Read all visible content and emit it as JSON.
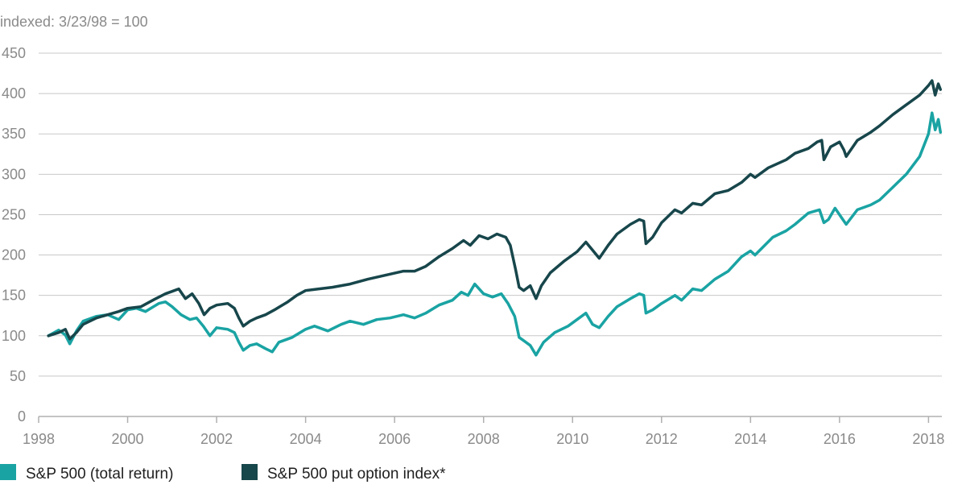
{
  "chart_data": {
    "type": "line",
    "title": "",
    "subtitle": "indexed: 3/23/98 = 100",
    "xlabel": "",
    "ylabel": "",
    "xlim": [
      1998,
      2018.3
    ],
    "ylim": [
      0,
      450
    ],
    "x_ticks": [
      "1998",
      "2000",
      "2002",
      "2004",
      "2006",
      "2008",
      "2010",
      "2012",
      "2014",
      "2016",
      "2018"
    ],
    "y_ticks": [
      "0",
      "50",
      "100",
      "150",
      "200",
      "250",
      "300",
      "350",
      "400",
      "450"
    ],
    "grid": true,
    "legend_position": "bottom",
    "series": [
      {
        "name": "S&P 500 (total return)",
        "color": "#1aa3a3",
        "points": [
          [
            1998.22,
            100
          ],
          [
            1998.45,
            107
          ],
          [
            1998.6,
            101
          ],
          [
            1998.7,
            90
          ],
          [
            1998.85,
            106
          ],
          [
            1999.0,
            118
          ],
          [
            1999.3,
            124
          ],
          [
            1999.55,
            126
          ],
          [
            1999.8,
            120
          ],
          [
            2000.0,
            132
          ],
          [
            2000.2,
            134
          ],
          [
            2000.4,
            130
          ],
          [
            2000.7,
            140
          ],
          [
            2000.85,
            142
          ],
          [
            2001.0,
            136
          ],
          [
            2001.2,
            126
          ],
          [
            2001.4,
            120
          ],
          [
            2001.55,
            122
          ],
          [
            2001.7,
            112
          ],
          [
            2001.85,
            100
          ],
          [
            2002.0,
            110
          ],
          [
            2002.25,
            108
          ],
          [
            2002.4,
            104
          ],
          [
            2002.5,
            92
          ],
          [
            2002.6,
            82
          ],
          [
            2002.75,
            88
          ],
          [
            2002.9,
            90
          ],
          [
            2003.1,
            84
          ],
          [
            2003.25,
            80
          ],
          [
            2003.4,
            92
          ],
          [
            2003.7,
            98
          ],
          [
            2004.0,
            108
          ],
          [
            2004.2,
            112
          ],
          [
            2004.5,
            106
          ],
          [
            2004.8,
            114
          ],
          [
            2005.0,
            118
          ],
          [
            2005.3,
            114
          ],
          [
            2005.6,
            120
          ],
          [
            2005.9,
            122
          ],
          [
            2006.2,
            126
          ],
          [
            2006.45,
            122
          ],
          [
            2006.7,
            128
          ],
          [
            2007.0,
            138
          ],
          [
            2007.3,
            144
          ],
          [
            2007.5,
            154
          ],
          [
            2007.65,
            150
          ],
          [
            2007.8,
            164
          ],
          [
            2008.0,
            152
          ],
          [
            2008.2,
            148
          ],
          [
            2008.4,
            152
          ],
          [
            2008.55,
            140
          ],
          [
            2008.7,
            124
          ],
          [
            2008.8,
            98
          ],
          [
            2008.9,
            94
          ],
          [
            2009.05,
            88
          ],
          [
            2009.18,
            76
          ],
          [
            2009.35,
            92
          ],
          [
            2009.6,
            104
          ],
          [
            2009.9,
            112
          ],
          [
            2010.1,
            120
          ],
          [
            2010.3,
            128
          ],
          [
            2010.45,
            114
          ],
          [
            2010.6,
            110
          ],
          [
            2010.8,
            124
          ],
          [
            2011.0,
            136
          ],
          [
            2011.3,
            146
          ],
          [
            2011.5,
            152
          ],
          [
            2011.6,
            150
          ],
          [
            2011.65,
            128
          ],
          [
            2011.8,
            132
          ],
          [
            2012.0,
            140
          ],
          [
            2012.3,
            150
          ],
          [
            2012.45,
            144
          ],
          [
            2012.7,
            158
          ],
          [
            2012.9,
            156
          ],
          [
            2013.2,
            170
          ],
          [
            2013.5,
            180
          ],
          [
            2013.8,
            198
          ],
          [
            2014.0,
            205
          ],
          [
            2014.1,
            200
          ],
          [
            2014.5,
            222
          ],
          [
            2014.8,
            230
          ],
          [
            2015.0,
            238
          ],
          [
            2015.3,
            252
          ],
          [
            2015.55,
            256
          ],
          [
            2015.65,
            240
          ],
          [
            2015.75,
            244
          ],
          [
            2015.9,
            258
          ],
          [
            2016.05,
            246
          ],
          [
            2016.15,
            238
          ],
          [
            2016.4,
            256
          ],
          [
            2016.7,
            262
          ],
          [
            2016.9,
            268
          ],
          [
            2017.2,
            284
          ],
          [
            2017.5,
            300
          ],
          [
            2017.8,
            322
          ],
          [
            2018.0,
            350
          ],
          [
            2018.08,
            376
          ],
          [
            2018.15,
            355
          ],
          [
            2018.22,
            368
          ],
          [
            2018.27,
            352
          ]
        ]
      },
      {
        "name": "S&P 500 put option index*",
        "color": "#17464b",
        "points": [
          [
            1998.22,
            100
          ],
          [
            1998.45,
            104
          ],
          [
            1998.6,
            108
          ],
          [
            1998.7,
            96
          ],
          [
            1998.85,
            104
          ],
          [
            1999.0,
            114
          ],
          [
            1999.3,
            122
          ],
          [
            1999.55,
            126
          ],
          [
            1999.8,
            130
          ],
          [
            2000.0,
            134
          ],
          [
            2000.3,
            136
          ],
          [
            2000.6,
            145
          ],
          [
            2000.85,
            152
          ],
          [
            2001.0,
            155
          ],
          [
            2001.15,
            158
          ],
          [
            2001.3,
            146
          ],
          [
            2001.45,
            152
          ],
          [
            2001.6,
            140
          ],
          [
            2001.72,
            126
          ],
          [
            2001.85,
            134
          ],
          [
            2002.0,
            138
          ],
          [
            2002.25,
            140
          ],
          [
            2002.4,
            134
          ],
          [
            2002.5,
            122
          ],
          [
            2002.6,
            112
          ],
          [
            2002.75,
            118
          ],
          [
            2002.9,
            122
          ],
          [
            2003.1,
            126
          ],
          [
            2003.3,
            132
          ],
          [
            2003.6,
            142
          ],
          [
            2003.8,
            150
          ],
          [
            2004.0,
            156
          ],
          [
            2004.3,
            158
          ],
          [
            2004.6,
            160
          ],
          [
            2005.0,
            164
          ],
          [
            2005.4,
            170
          ],
          [
            2005.8,
            175
          ],
          [
            2006.2,
            180
          ],
          [
            2006.45,
            180
          ],
          [
            2006.7,
            186
          ],
          [
            2007.0,
            198
          ],
          [
            2007.3,
            208
          ],
          [
            2007.55,
            218
          ],
          [
            2007.7,
            212
          ],
          [
            2007.9,
            224
          ],
          [
            2008.1,
            220
          ],
          [
            2008.3,
            226
          ],
          [
            2008.5,
            222
          ],
          [
            2008.6,
            212
          ],
          [
            2008.72,
            182
          ],
          [
            2008.8,
            160
          ],
          [
            2008.9,
            156
          ],
          [
            2009.05,
            162
          ],
          [
            2009.18,
            146
          ],
          [
            2009.3,
            162
          ],
          [
            2009.5,
            178
          ],
          [
            2009.8,
            192
          ],
          [
            2010.1,
            204
          ],
          [
            2010.3,
            216
          ],
          [
            2010.45,
            206
          ],
          [
            2010.6,
            196
          ],
          [
            2010.8,
            212
          ],
          [
            2011.0,
            226
          ],
          [
            2011.3,
            238
          ],
          [
            2011.5,
            244
          ],
          [
            2011.6,
            242
          ],
          [
            2011.65,
            214
          ],
          [
            2011.8,
            222
          ],
          [
            2012.0,
            240
          ],
          [
            2012.3,
            256
          ],
          [
            2012.45,
            252
          ],
          [
            2012.7,
            264
          ],
          [
            2012.9,
            262
          ],
          [
            2013.2,
            276
          ],
          [
            2013.5,
            280
          ],
          [
            2013.8,
            290
          ],
          [
            2014.0,
            300
          ],
          [
            2014.1,
            296
          ],
          [
            2014.4,
            308
          ],
          [
            2014.8,
            318
          ],
          [
            2015.0,
            326
          ],
          [
            2015.3,
            332
          ],
          [
            2015.5,
            340
          ],
          [
            2015.6,
            342
          ],
          [
            2015.65,
            318
          ],
          [
            2015.8,
            334
          ],
          [
            2016.0,
            340
          ],
          [
            2016.1,
            330
          ],
          [
            2016.15,
            322
          ],
          [
            2016.4,
            342
          ],
          [
            2016.7,
            352
          ],
          [
            2016.9,
            360
          ],
          [
            2017.2,
            374
          ],
          [
            2017.5,
            386
          ],
          [
            2017.8,
            398
          ],
          [
            2018.0,
            410
          ],
          [
            2018.08,
            416
          ],
          [
            2018.15,
            398
          ],
          [
            2018.22,
            412
          ],
          [
            2018.27,
            405
          ]
        ]
      }
    ]
  }
}
